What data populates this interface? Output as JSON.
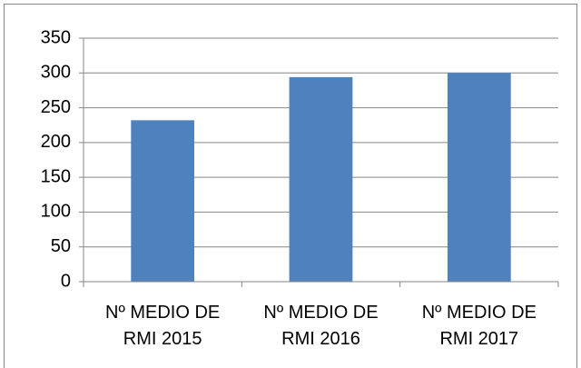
{
  "chart_data": {
    "type": "bar",
    "categories": [
      "Nº MEDIO DE RMI 2015",
      "Nº MEDIO DE RMI 2016",
      "Nº MEDIO DE RMI 2017"
    ],
    "values": [
      232,
      294,
      300
    ],
    "color": "#4f81bd",
    "ylim": [
      0,
      350
    ],
    "yticks": [
      0,
      50,
      100,
      150,
      200,
      250,
      300,
      350
    ],
    "grid": true
  }
}
